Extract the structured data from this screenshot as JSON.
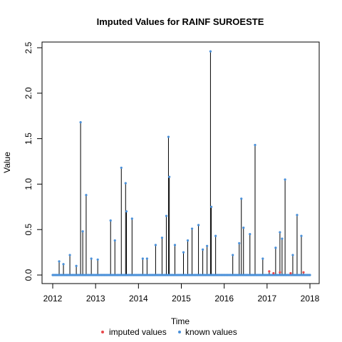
{
  "chart_data": {
    "type": "line",
    "title": "Imputed Values for  RAINF SUROESTE",
    "xlabel": "Time",
    "ylabel": "Value",
    "xlim": [
      2012,
      2018
    ],
    "ylim": [
      0,
      2.5
    ],
    "x_ticks": [
      "2012",
      "2013",
      "2014",
      "2015",
      "2016",
      "2017",
      "2018"
    ],
    "y_ticks": [
      "0.0",
      "0.5",
      "1.0",
      "1.5",
      "2.0",
      "2.5"
    ],
    "grid": false,
    "legend_position": "bottom",
    "series": [
      {
        "name": "imputed values",
        "color": "#e8474b",
        "points": [
          [
            2017.05,
            0.04
          ],
          [
            2017.15,
            0.02
          ],
          [
            2017.3,
            0.03
          ],
          [
            2017.55,
            0.02
          ],
          [
            2017.85,
            0.03
          ]
        ]
      },
      {
        "name": "known values",
        "color": "#4a90d9",
        "points": [
          [
            2012.15,
            0.15
          ],
          [
            2012.25,
            0.12
          ],
          [
            2012.4,
            0.22
          ],
          [
            2012.55,
            0.1
          ],
          [
            2012.65,
            1.68
          ],
          [
            2012.7,
            0.48
          ],
          [
            2012.78,
            0.88
          ],
          [
            2012.9,
            0.18
          ],
          [
            2013.05,
            0.17
          ],
          [
            2013.35,
            0.6
          ],
          [
            2013.45,
            0.38
          ],
          [
            2013.6,
            1.18
          ],
          [
            2013.7,
            1.01
          ],
          [
            2013.72,
            0.7
          ],
          [
            2013.85,
            0.62
          ],
          [
            2014.1,
            0.18
          ],
          [
            2014.2,
            0.18
          ],
          [
            2014.4,
            0.33
          ],
          [
            2014.55,
            0.41
          ],
          [
            2014.65,
            0.65
          ],
          [
            2014.7,
            1.52
          ],
          [
            2014.72,
            1.08
          ],
          [
            2014.85,
            0.33
          ],
          [
            2015.05,
            0.25
          ],
          [
            2015.15,
            0.38
          ],
          [
            2015.25,
            0.51
          ],
          [
            2015.4,
            0.55
          ],
          [
            2015.5,
            0.28
          ],
          [
            2015.6,
            0.32
          ],
          [
            2015.68,
            2.46
          ],
          [
            2015.7,
            0.75
          ],
          [
            2015.8,
            0.43
          ],
          [
            2016.2,
            0.22
          ],
          [
            2016.35,
            0.35
          ],
          [
            2016.4,
            0.84
          ],
          [
            2016.45,
            0.52
          ],
          [
            2016.6,
            0.45
          ],
          [
            2016.72,
            1.43
          ],
          [
            2016.9,
            0.18
          ],
          [
            2017.2,
            0.3
          ],
          [
            2017.3,
            0.47
          ],
          [
            2017.35,
            0.4
          ],
          [
            2017.42,
            1.05
          ],
          [
            2017.6,
            0.22
          ],
          [
            2017.7,
            0.66
          ],
          [
            2017.8,
            0.43
          ]
        ]
      }
    ]
  }
}
